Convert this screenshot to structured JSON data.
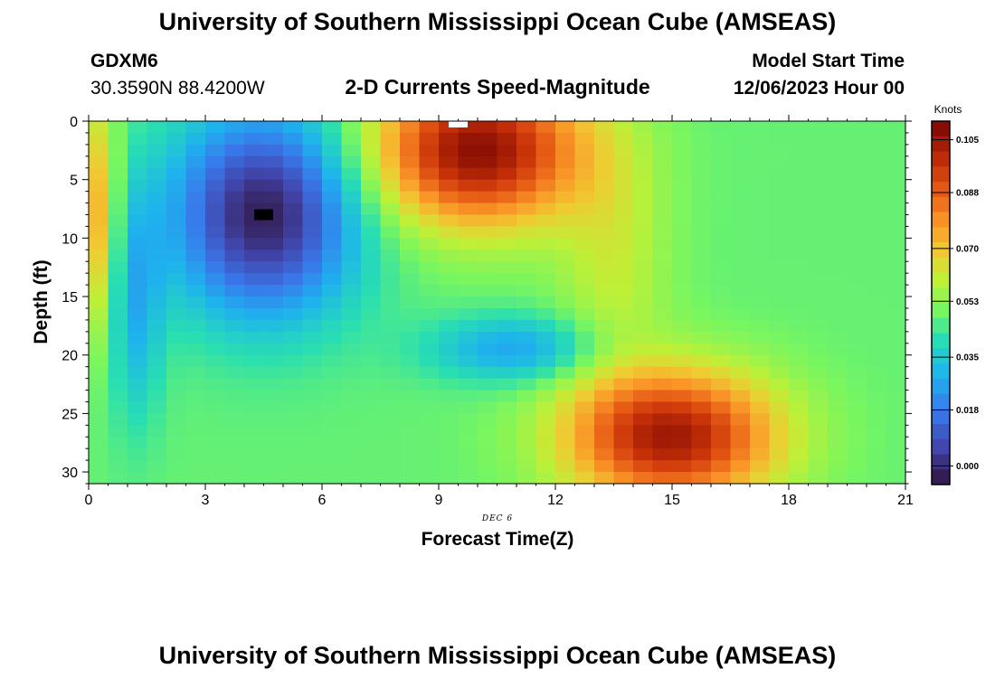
{
  "header": {
    "title": "University of Southern Mississippi Ocean Cube (AMSEAS)",
    "station": "GDXM6",
    "location": "30.3590N  88.4200W",
    "chart_subtitle": "2-D Currents Speed-Magnitude",
    "model_start_label": "Model Start Time",
    "model_start_value": "12/06/2023 Hour 00"
  },
  "footer": {
    "title": "University of Southern Mississippi Ocean Cube (AMSEAS)"
  },
  "chart_data": {
    "type": "heatmap",
    "title": "2-D Currents Speed-Magnitude",
    "xlabel": "Forecast Time(Z)",
    "ylabel": "Depth (ft)",
    "date_label": "DEC 6",
    "xlim": [
      0,
      21
    ],
    "ylim": [
      0,
      31
    ],
    "x_ticks": [
      0,
      3,
      6,
      9,
      12,
      15,
      18,
      21
    ],
    "y_ticks": [
      0,
      5,
      10,
      15,
      20,
      25,
      30
    ],
    "colorbar": {
      "label": "Knots",
      "ticks": [
        "0.000",
        "0.018",
        "0.035",
        "0.053",
        "0.070",
        "0.088",
        "0.105"
      ],
      "range": [
        -0.006,
        0.111
      ]
    },
    "grid": {
      "cols": 42,
      "rows": 31,
      "x_step_hours": 0.5,
      "y_step_ft": 1
    },
    "features": [
      {
        "name": "surface strip near bank",
        "x": 0.25,
        "value": 0.075
      },
      {
        "name": "low speed core",
        "x": 4.5,
        "y": 8,
        "value": -0.003
      },
      {
        "name": "surface maximum",
        "x": 10,
        "y": 1,
        "value": 0.108
      },
      {
        "name": "deep maximum",
        "x": 15,
        "y": 27,
        "value": 0.104
      },
      {
        "name": "mid-depth minimum",
        "x": 11,
        "y": 19.5,
        "value": 0.024
      },
      {
        "name": "background",
        "value": 0.048
      }
    ],
    "markers": [
      {
        "name": "minimum-marker",
        "x": 4.5,
        "y": 8,
        "color": "#000000"
      },
      {
        "name": "maximum-marker",
        "x": 9.5,
        "y": 0,
        "color": "#ffffff"
      }
    ]
  }
}
